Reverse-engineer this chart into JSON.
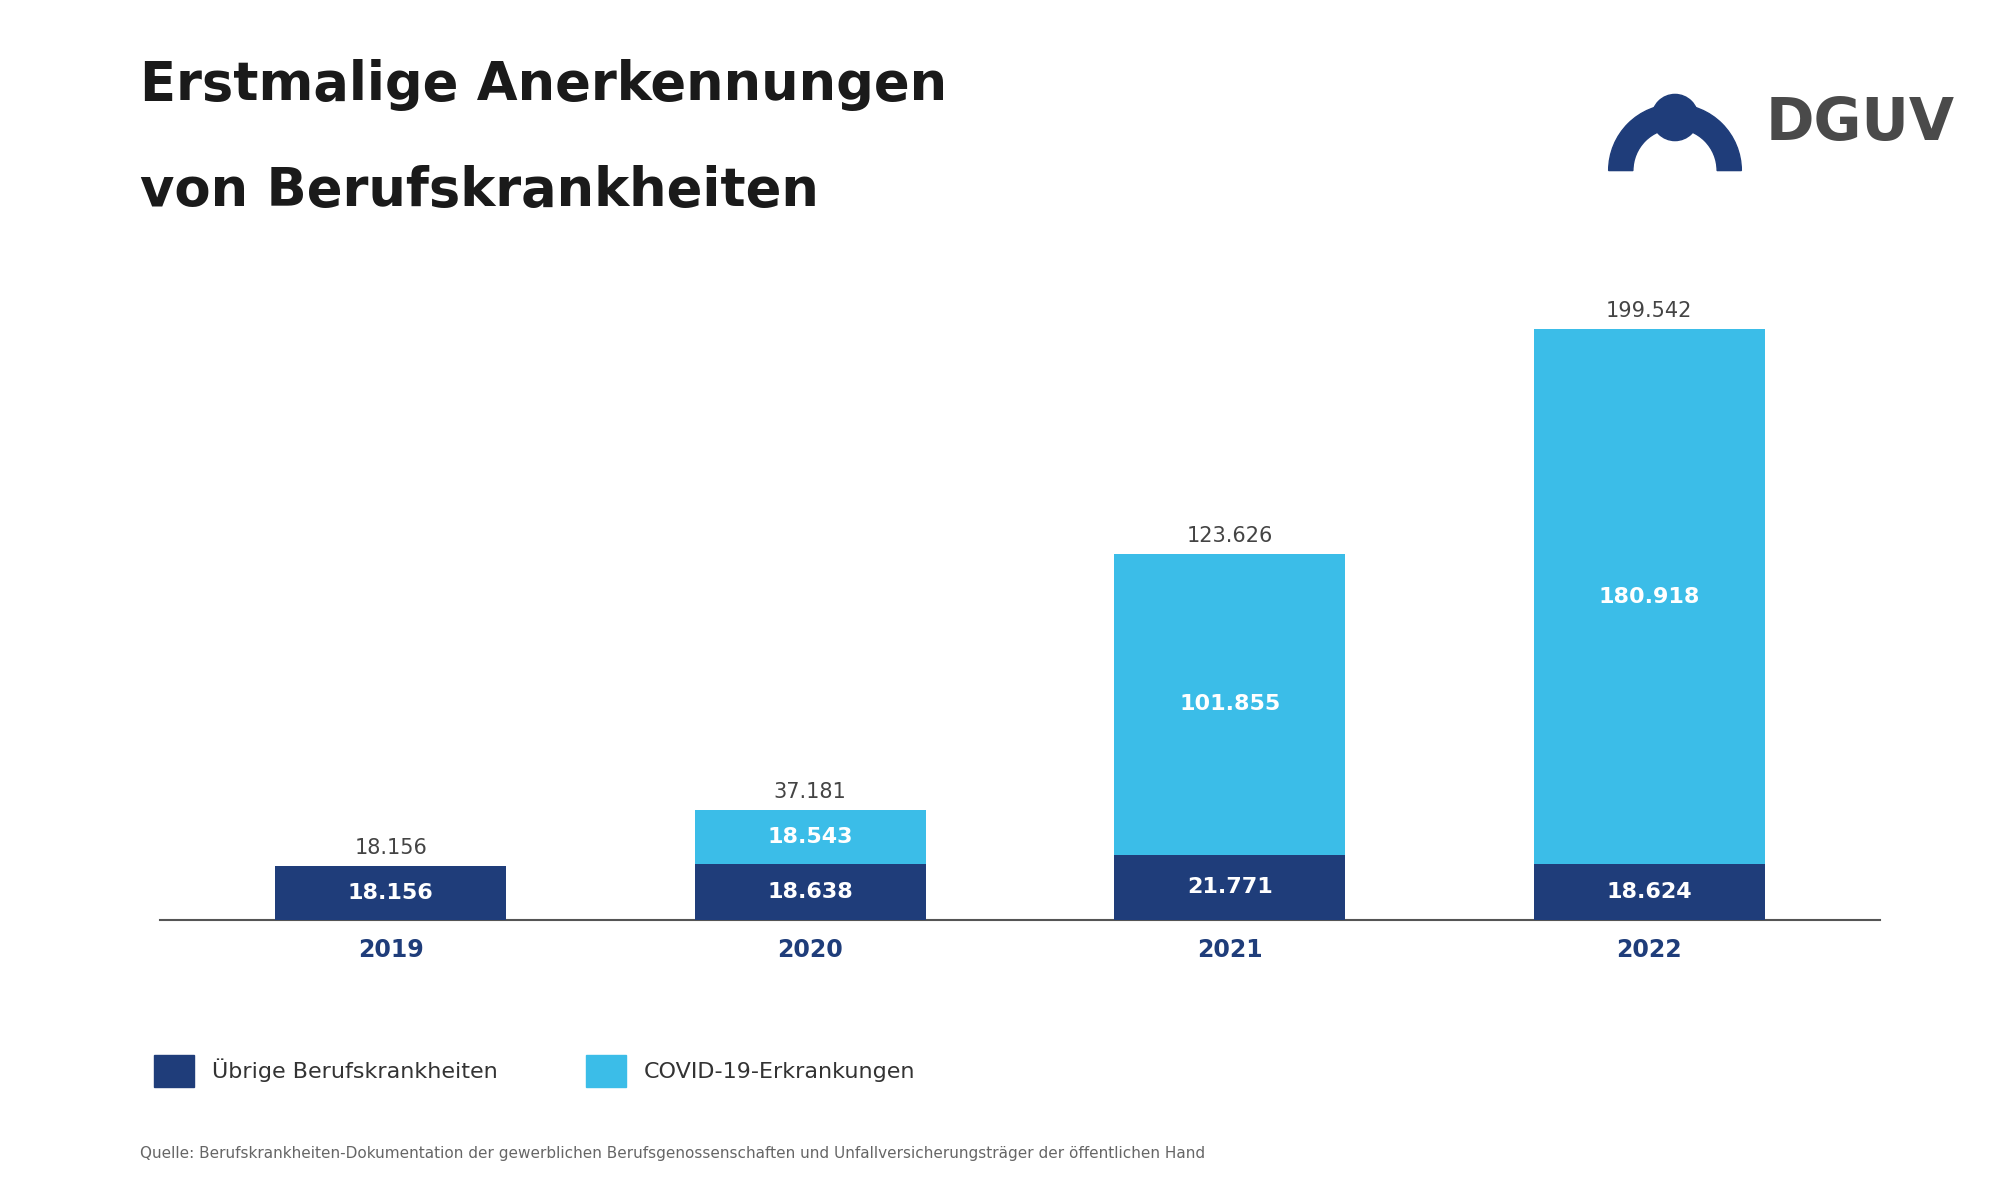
{
  "years": [
    "2019",
    "2020",
    "2021",
    "2022"
  ],
  "ubrige": [
    18156,
    18638,
    21771,
    18624
  ],
  "covid": [
    0,
    18543,
    101855,
    180918
  ],
  "totals": [
    18156,
    37181,
    123626,
    199542
  ],
  "ubrige_labels": [
    "18.156",
    "18.638",
    "21.771",
    "18.624"
  ],
  "covid_labels": [
    "",
    "18.543",
    "101.855",
    "180.918"
  ],
  "total_labels": [
    "18.156",
    "37.181",
    "123.626",
    "199.542"
  ],
  "color_ubrige": "#1f3d7a",
  "color_covid": "#3bbde8",
  "background_color": "#ffffff",
  "title_line1": "Erstmalige Anerkennungen",
  "title_line2": "von Berufskrankheiten",
  "legend_ubrige": "Übrige Berufskrankheiten",
  "legend_covid": "COVID-19-Erkrankungen",
  "source_text": "Quelle: Berufskrankheiten-Dokumentation der gewerblichen Berufsgenossenschaften und Unfallversicherungsträger der öffentlichen Hand",
  "title_fontsize": 38,
  "label_fontsize_inside": 16,
  "label_fontsize_outside": 15,
  "axis_fontsize": 17,
  "legend_fontsize": 16,
  "source_fontsize": 11,
  "bar_width": 0.55,
  "ylim": [
    0,
    215000
  ],
  "dguv_text": "DGUV",
  "dguv_fontsize": 42,
  "dguv_color": "#4a4a4a",
  "dguv_logo_color": "#1f3d7a",
  "year_label_color": "#1f3d7a"
}
